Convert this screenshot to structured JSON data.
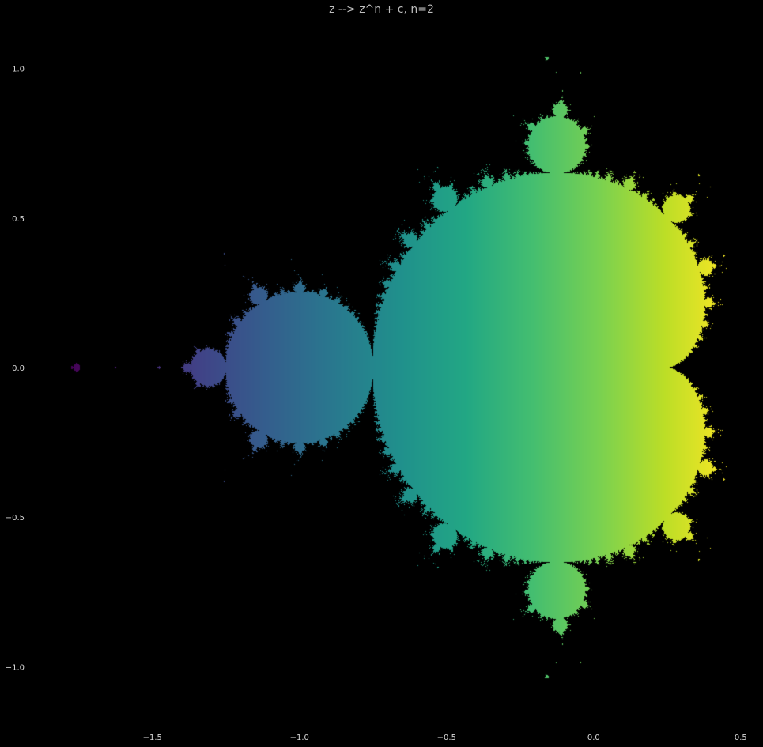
{
  "chart_data": {
    "type": "heatmap",
    "title": "z --> z^n + c, n=2",
    "xlabel": "",
    "ylabel": "",
    "xlim": [
      -1.83,
      0.53
    ],
    "ylim": [
      -1.15,
      1.15
    ],
    "exponent": 2,
    "colormap": "viridis",
    "color_by": "real part of c",
    "grid": false,
    "xticks": [
      -1.5,
      -1.0,
      -0.5,
      0.0,
      0.5
    ],
    "xtick_labels": [
      "−1.5",
      "−1.0",
      "−0.5",
      "0.0",
      "0.5"
    ],
    "yticks": [
      1.0,
      0.5,
      0.0,
      -0.5,
      -1.0
    ],
    "ytick_labels": [
      "1.0",
      "0.5",
      "0.0",
      "−0.5",
      "−1.0"
    ]
  },
  "colors": {
    "background": "#000000",
    "text": "#d8d8d8",
    "title": "#bfbfbf"
  }
}
